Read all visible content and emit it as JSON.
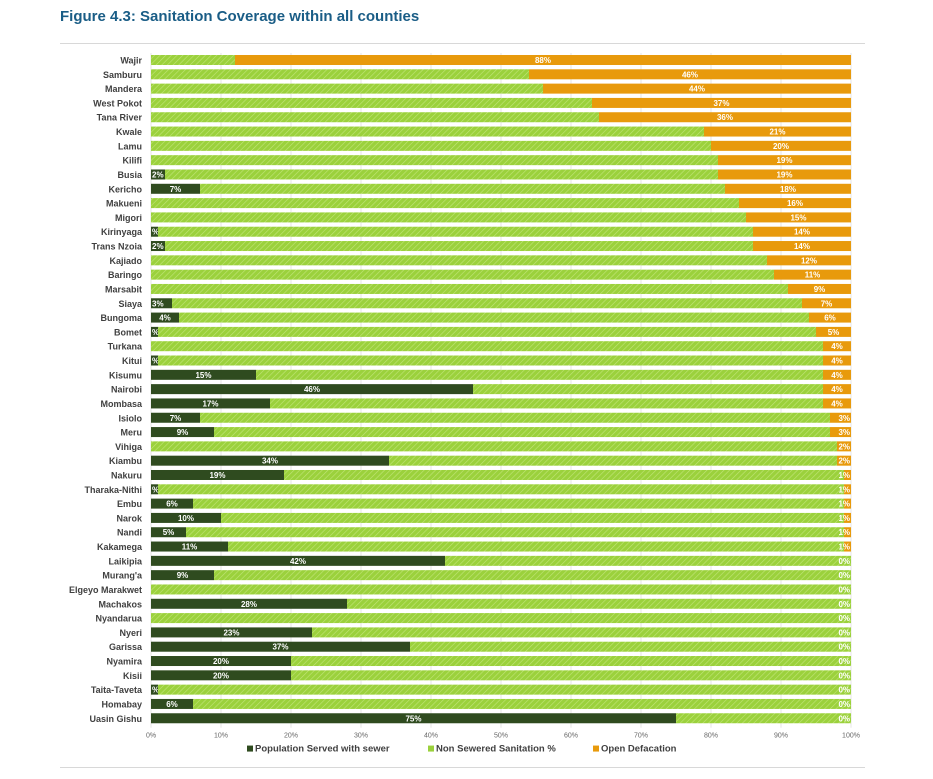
{
  "figure_title": "Figure 4.3: Sanitation Coverage within all counties",
  "colors": {
    "sewer": "#2f4b1f",
    "non_sewered": "#9bd13c",
    "open_defecation": "#e89a0c",
    "title": "#1a5d86"
  },
  "chart_data": {
    "type": "bar",
    "orientation": "horizontal",
    "stacked": true,
    "percent": true,
    "title": "",
    "xlabel": "",
    "ylabel": "",
    "xlim": [
      0,
      100
    ],
    "x_ticks": [
      "0%",
      "10%",
      "20%",
      "30%",
      "40%",
      "50%",
      "60%",
      "70%",
      "80%",
      "90%",
      "100%"
    ],
    "legend_position": "bottom",
    "grid": true,
    "categories": [
      "Wajir",
      "Samburu",
      "Mandera",
      "West Pokot",
      "Tana River",
      "Kwale",
      "Lamu",
      "Kilifi",
      "Busia",
      "Kericho",
      "Makueni",
      "Migori",
      "Kirinyaga",
      "Trans Nzoia",
      "Kajiado",
      "Baringo",
      "Marsabit",
      "Siaya",
      "Bungoma",
      "Bomet",
      "Turkana",
      "Kitui",
      "Kisumu",
      "Nairobi",
      "Mombasa",
      "Isiolo",
      "Meru",
      "Vihiga",
      "Kiambu",
      "Nakuru",
      "Tharaka-Nithi",
      "Embu",
      "Narok",
      "Nandi",
      "Kakamega",
      "Laikipia",
      "Murang'a",
      "Elgeyo Marakwet",
      "Machakos",
      "Nyandarua",
      "Nyeri",
      "Garissa",
      "Nyamira",
      "Kisii",
      "Taita-Taveta",
      "Homabay",
      "Uasin Gishu"
    ],
    "series": [
      {
        "name": "Population Served with sewer",
        "values": [
          0,
          0,
          0,
          0,
          0,
          0,
          0,
          0,
          2,
          7,
          0,
          0,
          1,
          2,
          0,
          0,
          0,
          3,
          4,
          1,
          0,
          1,
          15,
          46,
          17,
          7,
          9,
          0,
          34,
          19,
          1,
          6,
          10,
          5,
          11,
          42,
          9,
          0,
          28,
          0,
          23,
          37,
          20,
          20,
          1,
          6,
          75
        ],
        "labels": [
          "%",
          "%",
          "%",
          "%",
          "%",
          "%",
          "%",
          "%",
          "2%",
          "7%",
          "%",
          "%",
          "%",
          "2%",
          "%",
          "%",
          "%",
          "3%",
          "4%",
          "%",
          "%",
          "%",
          "15%",
          "46%",
          "17%",
          "7%",
          "9%",
          "%",
          "34%",
          "19%",
          "%",
          "6%",
          "10%",
          "5%",
          "11%",
          "42%",
          "9%",
          "%",
          "28%",
          "%",
          "23%",
          "37%",
          "20%",
          "20%",
          "%",
          "6%",
          "75%"
        ]
      },
      {
        "name": "Non Sewered Sanitation %",
        "values": [
          12,
          54,
          56,
          63,
          64,
          79,
          80,
          81,
          79,
          75,
          84,
          85,
          85,
          84,
          88,
          89,
          91,
          90,
          90,
          94,
          96,
          95,
          81,
          50,
          79,
          90,
          88,
          98,
          64,
          80,
          98,
          93,
          89,
          94,
          88,
          58,
          91,
          100,
          72,
          100,
          77,
          63,
          80,
          80,
          99,
          94,
          25
        ],
        "labels": []
      },
      {
        "name": "Open Defacation",
        "values": [
          88,
          46,
          44,
          37,
          36,
          21,
          20,
          19,
          19,
          18,
          16,
          15,
          14,
          14,
          12,
          11,
          9,
          7,
          6,
          5,
          4,
          4,
          4,
          4,
          4,
          3,
          3,
          2,
          2,
          1,
          1,
          1,
          1,
          1,
          1,
          0,
          0,
          0,
          0,
          0,
          0,
          0,
          0,
          0,
          0,
          0,
          0
        ],
        "labels": [
          "88%",
          "46%",
          "44%",
          "37%",
          "36%",
          "21%",
          "20%",
          "19%",
          "19%",
          "18%",
          "16%",
          "15%",
          "14%",
          "14%",
          "12%",
          "11%",
          "9%",
          "7%",
          "6%",
          "5%",
          "4%",
          "4%",
          "4%",
          "4%",
          "4%",
          "3%",
          "3%",
          "2%",
          "2%",
          "1%",
          "1%",
          "1%",
          "1%",
          "1%",
          "1%",
          "0%",
          "0%",
          "0%",
          "0%",
          "0%",
          "0%",
          "0%",
          "0%",
          "0%",
          "0%",
          "0%",
          "0%"
        ]
      }
    ]
  }
}
